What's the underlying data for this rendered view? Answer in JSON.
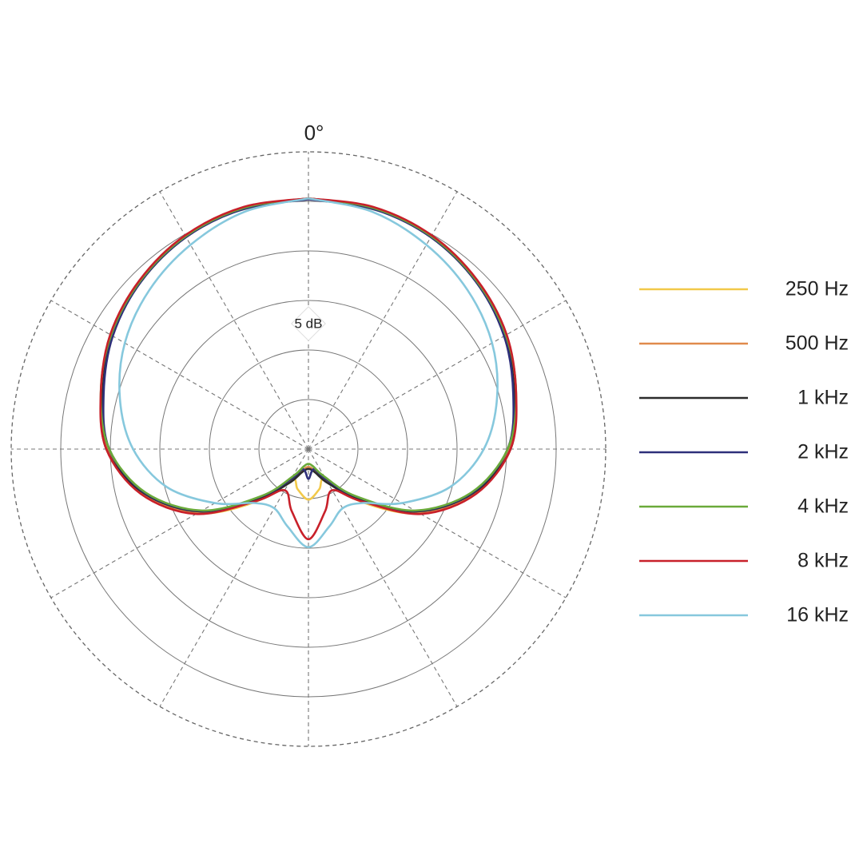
{
  "chart_data": {
    "type": "polar",
    "theta_label": "0°",
    "annotation": "5 dB",
    "rlim": [
      -25,
      5
    ],
    "rticks": [
      -20,
      -15,
      -10,
      -5,
      0
    ],
    "spokes": [
      0,
      30,
      60,
      90,
      120,
      150,
      180,
      210,
      240,
      270,
      300,
      330
    ],
    "theta": [
      0,
      15,
      30,
      45,
      60,
      75,
      90,
      105,
      120,
      135,
      150,
      165,
      180,
      195,
      210,
      225,
      240,
      255,
      270,
      285,
      300,
      315,
      330,
      345,
      360
    ],
    "legend": "right",
    "series": [
      {
        "name": "250 Hz",
        "color": "#f2c94a",
        "values": [
          0.3,
          0.2,
          -0.2,
          -1.0,
          -2.0,
          -3.4,
          -4.8,
          -7.6,
          -12.0,
          -17.5,
          -21.5,
          -20.8,
          -19.9,
          -20.8,
          -21.5,
          -17.5,
          -12.0,
          -7.6,
          -4.8,
          -3.4,
          -2.0,
          -1.0,
          -0.2,
          0.2,
          0.3
        ]
      },
      {
        "name": "500 Hz",
        "color": "#e08a4c",
        "values": [
          0.3,
          0.2,
          -0.2,
          -1.0,
          -2.0,
          -3.4,
          -4.7,
          -7.6,
          -12.2,
          -17.8,
          -21.2,
          -22.8,
          -23.2,
          -22.8,
          -21.2,
          -17.8,
          -12.2,
          -7.6,
          -4.7,
          -3.4,
          -2.0,
          -1.0,
          -0.2,
          0.2,
          0.3
        ]
      },
      {
        "name": "1 kHz",
        "color": "#2b2b2b",
        "values": [
          0.3,
          0.2,
          -0.3,
          -1.1,
          -2.1,
          -3.5,
          -4.6,
          -7.8,
          -12.4,
          -18.0,
          -21.0,
          -22.6,
          -23.0,
          -22.6,
          -21.0,
          -18.0,
          -12.4,
          -7.8,
          -4.6,
          -3.5,
          -2.1,
          -1.1,
          -0.3,
          0.2,
          0.3
        ]
      },
      {
        "name": "2 kHz",
        "color": "#2e2f7a",
        "values": [
          0.2,
          0.1,
          -0.3,
          -1.1,
          -2.2,
          -3.6,
          -4.9,
          -7.9,
          -12.5,
          -18.2,
          -21.5,
          -22.9,
          -22.0,
          -22.9,
          -21.5,
          -18.2,
          -12.5,
          -7.9,
          -4.9,
          -3.6,
          -2.2,
          -1.1,
          -0.3,
          0.1,
          0.2
        ]
      },
      {
        "name": "4 kHz",
        "color": "#6aaa3a",
        "values": [
          0.3,
          0.2,
          -0.2,
          -1.0,
          -2.0,
          -3.3,
          -4.9,
          -8.0,
          -12.6,
          -18.3,
          -21.8,
          -23.2,
          -23.5,
          -23.2,
          -21.8,
          -18.3,
          -12.6,
          -8.0,
          -4.9,
          -3.3,
          -2.0,
          -1.0,
          -0.2,
          0.2,
          0.3
        ]
      },
      {
        "name": "8 kHz",
        "color": "#c8202a",
        "values": [
          0.3,
          0.3,
          -0.1,
          -0.9,
          -1.9,
          -3.3,
          -4.6,
          -7.5,
          -11.9,
          -17.6,
          -20.2,
          -18.5,
          -15.9,
          -18.5,
          -20.2,
          -17.6,
          -11.9,
          -7.5,
          -4.6,
          -3.3,
          -1.9,
          -0.9,
          -0.1,
          0.3,
          0.3
        ]
      },
      {
        "name": "16 kHz",
        "color": "#86c8dd",
        "values": [
          0.3,
          -0.2,
          -1.2,
          -2.3,
          -3.6,
          -5.3,
          -7.3,
          -10.2,
          -14.1,
          -17.3,
          -18.1,
          -16.9,
          -15.1,
          -16.9,
          -18.1,
          -17.3,
          -14.1,
          -10.2,
          -7.3,
          -5.3,
          -3.6,
          -2.3,
          -1.2,
          -0.2,
          0.3
        ]
      }
    ]
  }
}
